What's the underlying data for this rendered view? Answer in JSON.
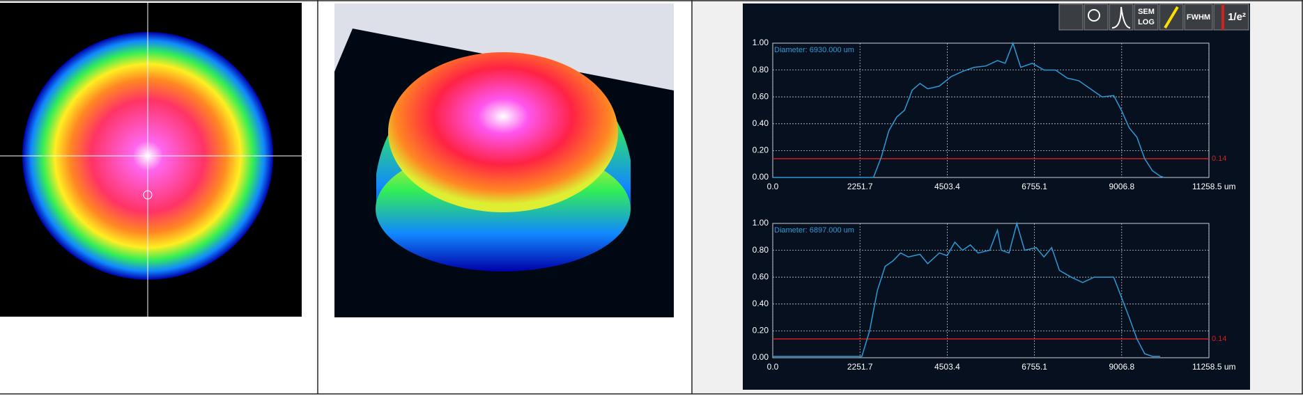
{
  "toolbar": {
    "sem_log": [
      "SEM",
      "LOG"
    ],
    "fwhm": "FWHM",
    "inverse_e2": "1/e²"
  },
  "chart_data": [
    {
      "type": "line",
      "annotation": "Diameter: 6930.000 um",
      "x": [
        0,
        1000,
        2000,
        2600,
        2800,
        3000,
        3200,
        3400,
        3600,
        3800,
        4000,
        4300,
        4600,
        4900,
        5200,
        5500,
        5800,
        6000,
        6200,
        6400,
        6700,
        7000,
        7300,
        7600,
        7900,
        8200,
        8500,
        8800,
        9000,
        9200,
        9400,
        9600,
        9800,
        10000,
        10100
      ],
      "series": [
        {
          "color": "#2b9bd8",
          "values": [
            0,
            0,
            0,
            0,
            0.15,
            0.35,
            0.45,
            0.5,
            0.65,
            0.7,
            0.66,
            0.68,
            0.75,
            0.79,
            0.82,
            0.83,
            0.87,
            0.85,
            1.0,
            0.82,
            0.85,
            0.8,
            0.8,
            0.74,
            0.72,
            0.66,
            0.6,
            0.61,
            0.5,
            0.37,
            0.3,
            0.14,
            0.05,
            0.01,
            0
          ]
        }
      ],
      "xlim": [
        0,
        11258.5
      ],
      "ylim": [
        0,
        1
      ],
      "xticks": [
        {
          "value": 0,
          "label": "0.0"
        },
        2251.7,
        4503.4,
        6755.1,
        9006.8,
        {
          "value": 11258.5,
          "label": "11258.5 um"
        }
      ],
      "yticks": [
        {
          "value": 0,
          "label": "0.00"
        },
        {
          "value": 0.2,
          "label": "0.20"
        },
        {
          "value": 0.4,
          "label": "0.40"
        },
        {
          "value": 0.6,
          "label": "0.60"
        },
        {
          "value": 0.8,
          "label": "0.80"
        },
        {
          "value": 1,
          "label": "1.00"
        }
      ],
      "threshold": {
        "value": 0.14,
        "color": "#d02020"
      },
      "grid": true
    },
    {
      "type": "line",
      "annotation": "Diameter: 6897.000 um",
      "x": [
        0,
        1000,
        2000,
        2300,
        2500,
        2700,
        2900,
        3100,
        3300,
        3500,
        3800,
        4000,
        4300,
        4500,
        4700,
        4900,
        5100,
        5300,
        5600,
        5800,
        5900,
        6100,
        6300,
        6500,
        6800,
        7000,
        7200,
        7400,
        7700,
        8000,
        8300,
        8600,
        8800,
        9000,
        9200,
        9400,
        9600,
        9800,
        10000
      ],
      "series": [
        {
          "color": "#2b9bd8",
          "values": [
            0.01,
            0.01,
            0.01,
            0.01,
            0.2,
            0.5,
            0.68,
            0.72,
            0.78,
            0.75,
            0.77,
            0.7,
            0.78,
            0.76,
            0.86,
            0.8,
            0.84,
            0.78,
            0.8,
            0.95,
            0.8,
            0.78,
            1.0,
            0.8,
            0.82,
            0.75,
            0.82,
            0.65,
            0.6,
            0.56,
            0.6,
            0.6,
            0.6,
            0.45,
            0.3,
            0.14,
            0.03,
            0.01,
            0.01
          ]
        }
      ],
      "xlim": [
        0,
        11258.5
      ],
      "ylim": [
        0,
        1
      ],
      "xticks": [
        {
          "value": 0,
          "label": "0.0"
        },
        2251.7,
        4503.4,
        6755.1,
        9006.8,
        {
          "value": 11258.5,
          "label": "11258.5 um"
        }
      ],
      "yticks": [
        {
          "value": 0,
          "label": "0.00"
        },
        {
          "value": 0.2,
          "label": "0.20"
        },
        {
          "value": 0.4,
          "label": "0.40"
        },
        {
          "value": 0.6,
          "label": "0.60"
        },
        {
          "value": 0.8,
          "label": "0.80"
        },
        {
          "value": 1,
          "label": "1.00"
        }
      ],
      "threshold": {
        "value": 0.14,
        "color": "#d02020"
      },
      "grid": true
    }
  ]
}
